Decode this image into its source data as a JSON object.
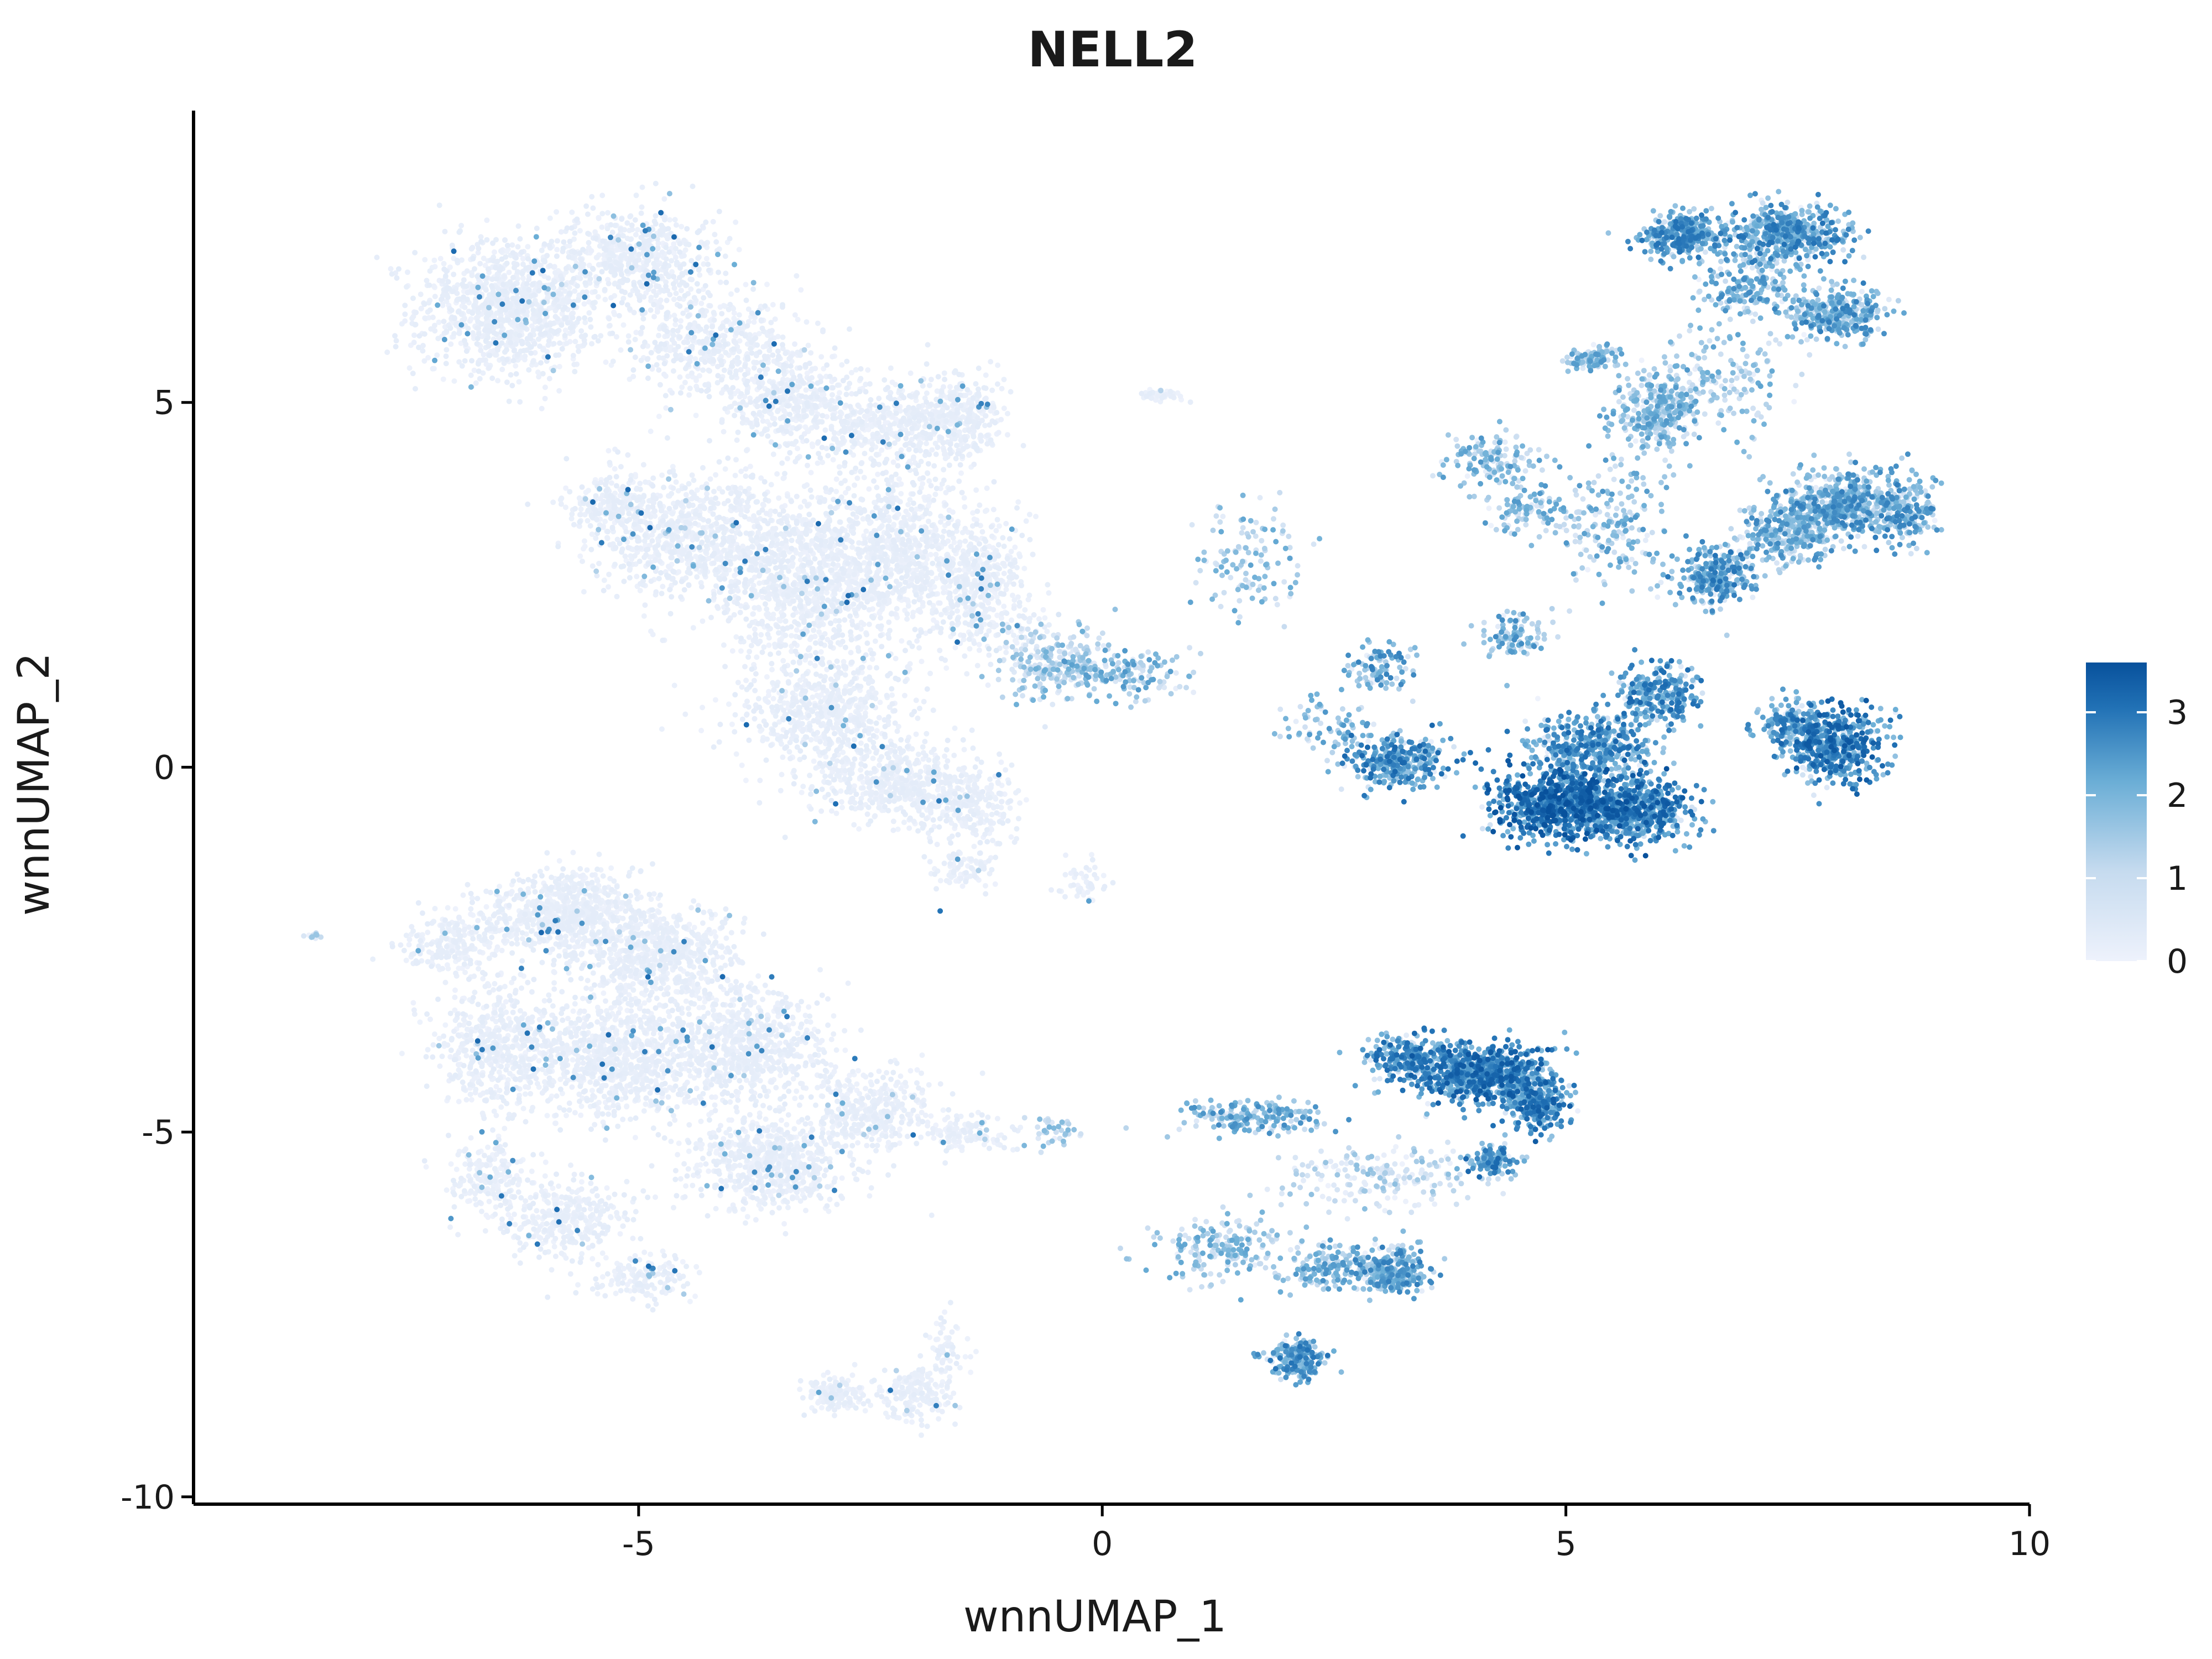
{
  "chart_data": {
    "type": "scatter",
    "title": "NELL2",
    "xlabel": "wnnUMAP_1",
    "ylabel": "wnnUMAP_2",
    "xlim": [
      -9.8,
      10
    ],
    "ylim": [
      -10.1,
      9
    ],
    "x_ticks": [
      -5,
      0,
      5,
      10
    ],
    "x_tick_labels": [
      "-5",
      "0",
      "5",
      "10"
    ],
    "y_ticks": [
      -10,
      -5,
      0,
      5
    ],
    "y_tick_labels": [
      "-10",
      "-5",
      "0",
      "5"
    ],
    "grid": false,
    "legend": {
      "position": "right",
      "type": "colorbar",
      "range": [
        0,
        3.6
      ],
      "ticks": [
        0,
        1,
        2,
        3
      ],
      "tick_labels": [
        "0",
        "1",
        "2",
        "3"
      ],
      "low_color": "#eef2fc",
      "high_color": "#08519c"
    },
    "point_clusters": [
      {
        "cx": -6.4,
        "cy": 6.3,
        "sx": 0.9,
        "sy": 0.85,
        "n": 1100,
        "level": 0.05
      },
      {
        "cx": -5.0,
        "cy": 7.0,
        "sx": 0.8,
        "sy": 0.6,
        "n": 600,
        "level": 0.05
      },
      {
        "cx": -4.2,
        "cy": 5.8,
        "sx": 0.9,
        "sy": 0.6,
        "n": 500,
        "level": 0.06
      },
      {
        "cx": -3.3,
        "cy": 5.0,
        "sx": 0.7,
        "sy": 0.6,
        "n": 450,
        "level": 0.07
      },
      {
        "cx": -2.2,
        "cy": 4.7,
        "sx": 0.8,
        "sy": 0.6,
        "n": 450,
        "level": 0.08
      },
      {
        "cx": -1.5,
        "cy": 4.8,
        "sx": 0.4,
        "sy": 0.5,
        "n": 250,
        "level": 0.07
      },
      {
        "cx": -5.3,
        "cy": 3.6,
        "sx": 0.4,
        "sy": 0.3,
        "n": 180,
        "level": 0.05
      },
      {
        "cx": -4.5,
        "cy": 3.2,
        "sx": 0.9,
        "sy": 0.8,
        "n": 800,
        "level": 0.06
      },
      {
        "cx": -3.3,
        "cy": 2.6,
        "sx": 0.8,
        "sy": 1.0,
        "n": 900,
        "level": 0.08
      },
      {
        "cx": -2.2,
        "cy": 2.9,
        "sx": 0.8,
        "sy": 1.0,
        "n": 900,
        "level": 0.1
      },
      {
        "cx": -1.3,
        "cy": 2.5,
        "sx": 0.5,
        "sy": 0.8,
        "n": 450,
        "level": 0.12
      },
      {
        "cx": -3.0,
        "cy": 0.8,
        "sx": 0.8,
        "sy": 0.7,
        "n": 600,
        "level": 0.1
      },
      {
        "cx": -2.3,
        "cy": -0.2,
        "sx": 0.8,
        "sy": 0.5,
        "n": 500,
        "level": 0.12
      },
      {
        "cx": -1.4,
        "cy": -0.5,
        "sx": 0.5,
        "sy": 0.4,
        "n": 250,
        "level": 0.14
      },
      {
        "cx": -1.5,
        "cy": -1.4,
        "sx": 0.3,
        "sy": 0.3,
        "n": 90,
        "level": 0.1
      },
      {
        "cx": -0.5,
        "cy": 1.4,
        "sx": 0.55,
        "sy": 0.45,
        "n": 260,
        "level": 0.35
      },
      {
        "cx": 0.2,
        "cy": 1.3,
        "sx": 0.6,
        "sy": 0.3,
        "n": 140,
        "level": 0.45
      },
      {
        "cx": -0.2,
        "cy": -1.6,
        "sx": 0.3,
        "sy": 0.3,
        "n": 50,
        "level": 0.12
      },
      {
        "cx": 0.7,
        "cy": 5.1,
        "sx": 0.2,
        "sy": 0.1,
        "n": 40,
        "level": 0.15
      },
      {
        "cx": 1.6,
        "cy": 2.8,
        "sx": 0.6,
        "sy": 0.7,
        "n": 120,
        "level": 0.4
      },
      {
        "cx": 6.3,
        "cy": 7.3,
        "sx": 0.4,
        "sy": 0.3,
        "n": 350,
        "level": 0.6
      },
      {
        "cx": 7.4,
        "cy": 7.3,
        "sx": 0.6,
        "sy": 0.35,
        "n": 500,
        "level": 0.6
      },
      {
        "cx": 7.9,
        "cy": 6.2,
        "sx": 0.45,
        "sy": 0.3,
        "n": 320,
        "level": 0.55
      },
      {
        "cx": 7.0,
        "cy": 6.6,
        "sx": 0.5,
        "sy": 0.4,
        "n": 200,
        "level": 0.5
      },
      {
        "cx": 5.3,
        "cy": 5.6,
        "sx": 0.25,
        "sy": 0.15,
        "n": 110,
        "level": 0.45
      },
      {
        "cx": 5.9,
        "cy": 4.8,
        "sx": 0.4,
        "sy": 0.5,
        "n": 200,
        "level": 0.45
      },
      {
        "cx": 6.1,
        "cy": 5.1,
        "sx": 0.3,
        "sy": 0.4,
        "n": 130,
        "level": 0.45
      },
      {
        "cx": 6.7,
        "cy": 5.3,
        "sx": 0.6,
        "sy": 0.8,
        "n": 160,
        "level": 0.4
      },
      {
        "cx": 4.2,
        "cy": 4.2,
        "sx": 0.5,
        "sy": 0.4,
        "n": 150,
        "level": 0.45
      },
      {
        "cx": 4.6,
        "cy": 3.5,
        "sx": 0.4,
        "sy": 0.3,
        "n": 100,
        "level": 0.45
      },
      {
        "cx": 5.5,
        "cy": 3.3,
        "sx": 0.5,
        "sy": 0.8,
        "n": 180,
        "level": 0.45
      },
      {
        "cx": 8.0,
        "cy": 3.6,
        "sx": 0.6,
        "sy": 0.45,
        "n": 550,
        "level": 0.55
      },
      {
        "cx": 7.4,
        "cy": 3.2,
        "sx": 0.5,
        "sy": 0.4,
        "n": 300,
        "level": 0.5
      },
      {
        "cx": 6.6,
        "cy": 2.6,
        "sx": 0.4,
        "sy": 0.35,
        "n": 280,
        "level": 0.6
      },
      {
        "cx": 8.7,
        "cy": 3.5,
        "sx": 0.3,
        "sy": 0.4,
        "n": 150,
        "level": 0.55
      },
      {
        "cx": 7.9,
        "cy": 0.3,
        "sx": 0.5,
        "sy": 0.45,
        "n": 500,
        "level": 0.72
      },
      {
        "cx": 7.4,
        "cy": 0.6,
        "sx": 0.3,
        "sy": 0.3,
        "n": 150,
        "level": 0.6
      },
      {
        "cx": 5.0,
        "cy": -0.5,
        "sx": 0.7,
        "sy": 0.45,
        "n": 900,
        "level": 0.78
      },
      {
        "cx": 5.8,
        "cy": -0.6,
        "sx": 0.5,
        "sy": 0.4,
        "n": 450,
        "level": 0.72
      },
      {
        "cx": 5.3,
        "cy": 0.3,
        "sx": 0.6,
        "sy": 0.4,
        "n": 400,
        "level": 0.65
      },
      {
        "cx": 6.0,
        "cy": 1.0,
        "sx": 0.4,
        "sy": 0.4,
        "n": 250,
        "level": 0.65
      },
      {
        "cx": 3.2,
        "cy": 0.1,
        "sx": 0.5,
        "sy": 0.3,
        "n": 300,
        "level": 0.65
      },
      {
        "cx": 3.0,
        "cy": 1.4,
        "sx": 0.3,
        "sy": 0.3,
        "n": 90,
        "level": 0.55
      },
      {
        "cx": 4.4,
        "cy": 1.8,
        "sx": 0.4,
        "sy": 0.3,
        "n": 100,
        "level": 0.5
      },
      {
        "cx": 2.5,
        "cy": 0.6,
        "sx": 0.6,
        "sy": 0.4,
        "n": 80,
        "level": 0.45
      },
      {
        "cx": -7.0,
        "cy": -2.4,
        "sx": 0.5,
        "sy": 0.4,
        "n": 200,
        "level": 0.05
      },
      {
        "cx": -5.8,
        "cy": -2.0,
        "sx": 0.8,
        "sy": 0.5,
        "n": 700,
        "level": 0.05
      },
      {
        "cx": -4.8,
        "cy": -2.6,
        "sx": 0.8,
        "sy": 0.6,
        "n": 700,
        "level": 0.06
      },
      {
        "cx": -6.5,
        "cy": -3.8,
        "sx": 0.6,
        "sy": 0.8,
        "n": 550,
        "level": 0.05
      },
      {
        "cx": -5.2,
        "cy": -4.0,
        "sx": 0.9,
        "sy": 0.8,
        "n": 900,
        "level": 0.07
      },
      {
        "cx": -3.8,
        "cy": -3.8,
        "sx": 0.8,
        "sy": 0.7,
        "n": 700,
        "level": 0.08
      },
      {
        "cx": -3.6,
        "cy": -5.4,
        "sx": 0.8,
        "sy": 0.6,
        "n": 700,
        "level": 0.08
      },
      {
        "cx": -2.5,
        "cy": -4.7,
        "sx": 0.6,
        "sy": 0.5,
        "n": 350,
        "level": 0.1
      },
      {
        "cx": -5.8,
        "cy": -6.2,
        "sx": 0.6,
        "sy": 0.5,
        "n": 350,
        "level": 0.05
      },
      {
        "cx": -6.6,
        "cy": -5.6,
        "sx": 0.4,
        "sy": 0.5,
        "n": 200,
        "level": 0.05
      },
      {
        "cx": -5.0,
        "cy": -7.0,
        "sx": 0.5,
        "sy": 0.3,
        "n": 150,
        "level": 0.05
      },
      {
        "cx": -2.9,
        "cy": -8.6,
        "sx": 0.3,
        "sy": 0.25,
        "n": 150,
        "level": 0.07
      },
      {
        "cx": -2.0,
        "cy": -8.6,
        "sx": 0.4,
        "sy": 0.35,
        "n": 180,
        "level": 0.1
      },
      {
        "cx": -1.7,
        "cy": -8.0,
        "sx": 0.2,
        "sy": 0.4,
        "n": 60,
        "level": 0.1
      },
      {
        "cx": -1.5,
        "cy": -5.0,
        "sx": 0.5,
        "sy": 0.25,
        "n": 120,
        "level": 0.15
      },
      {
        "cx": -0.5,
        "cy": -5.0,
        "sx": 0.3,
        "sy": 0.2,
        "n": 40,
        "level": 0.35
      },
      {
        "cx": -8.5,
        "cy": -2.3,
        "sx": 0.1,
        "sy": 0.05,
        "n": 15,
        "level": 0.2
      },
      {
        "cx": 4.1,
        "cy": -4.2,
        "sx": 0.6,
        "sy": 0.35,
        "n": 750,
        "level": 0.72
      },
      {
        "cx": 3.3,
        "cy": -4.0,
        "sx": 0.4,
        "sy": 0.3,
        "n": 250,
        "level": 0.65
      },
      {
        "cx": 4.7,
        "cy": -4.6,
        "sx": 0.3,
        "sy": 0.35,
        "n": 250,
        "level": 0.7
      },
      {
        "cx": 4.2,
        "cy": -5.4,
        "sx": 0.25,
        "sy": 0.2,
        "n": 100,
        "level": 0.65
      },
      {
        "cx": 1.6,
        "cy": -4.8,
        "sx": 0.8,
        "sy": 0.2,
        "n": 200,
        "level": 0.5
      },
      {
        "cx": 3.1,
        "cy": -6.9,
        "sx": 0.35,
        "sy": 0.3,
        "n": 300,
        "level": 0.55
      },
      {
        "cx": 2.4,
        "cy": -6.9,
        "sx": 0.4,
        "sy": 0.3,
        "n": 150,
        "level": 0.5
      },
      {
        "cx": 1.3,
        "cy": -6.6,
        "sx": 0.7,
        "sy": 0.4,
        "n": 200,
        "level": 0.4
      },
      {
        "cx": 2.1,
        "cy": -8.1,
        "sx": 0.3,
        "sy": 0.25,
        "n": 200,
        "level": 0.6
      },
      {
        "cx": 3.0,
        "cy": -5.6,
        "sx": 1.0,
        "sy": 0.4,
        "n": 200,
        "level": 0.25
      }
    ]
  }
}
